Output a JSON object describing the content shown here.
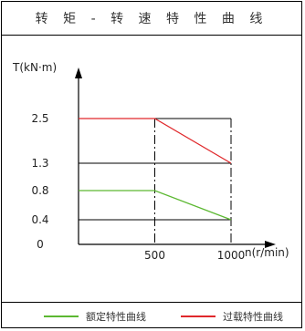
{
  "header": {
    "title": "转 矩 - 转 速 特 性 曲 线"
  },
  "legend": [
    {
      "label": "额定特性曲线",
      "color": "#5cb832"
    },
    {
      "label": "过载特性曲线",
      "color": "#e0282b"
    }
  ],
  "chart_data": {
    "type": "line",
    "ylabel": "T(kN·m)",
    "xlabel": "n(r/min)",
    "x_ticks": [
      "500",
      "1000"
    ],
    "y_ticks": [
      "2.5",
      "1.3",
      "0.8",
      "0.4",
      "0"
    ],
    "xlim": [
      0,
      1000
    ],
    "ylim_ticks": [
      0,
      0.4,
      0.8,
      1.3,
      2.5
    ],
    "series": [
      {
        "name": "额定特性曲线",
        "color": "#5cb832",
        "x": [
          0,
          500,
          1000
        ],
        "y": [
          0.8,
          0.8,
          0.4
        ]
      },
      {
        "name": "过载特性曲线",
        "color": "#e0282b",
        "x": [
          0,
          500,
          1000
        ],
        "y": [
          2.5,
          2.5,
          1.3
        ]
      }
    ],
    "grid": "black horizontal lines at 0.4, 1.3, 2.5; dash-dot vertical lines at 500 and 1000"
  }
}
